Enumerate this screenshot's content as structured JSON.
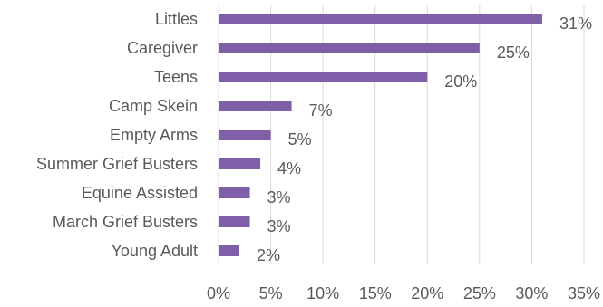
{
  "chart_data": {
    "type": "bar",
    "orientation": "horizontal",
    "title": "",
    "xlabel": "",
    "ylabel": "",
    "categories": [
      "Littles",
      "Caregiver",
      "Teens",
      "Camp Skein",
      "Empty Arms",
      "Summer Grief Busters",
      "Equine Assisted",
      "March Grief Busters",
      "Young Adult"
    ],
    "values": [
      31,
      25,
      20,
      7,
      5,
      4,
      3,
      3,
      2
    ],
    "data_labels": [
      "31%",
      "25%",
      "20%",
      "7%",
      "5%",
      "4%",
      "3%",
      "3%",
      "2%"
    ],
    "xlim": [
      0,
      35
    ],
    "x_ticks": [
      0,
      5,
      10,
      15,
      20,
      25,
      30,
      35
    ],
    "x_tick_labels": [
      "0%",
      "5%",
      "10%",
      "15%",
      "20%",
      "25%",
      "30%",
      "35%"
    ],
    "grid": "vertical",
    "legend": "none",
    "colors": {
      "bar": "#7F60A8",
      "grid": "#D9D9D9",
      "text": "#595959"
    }
  }
}
